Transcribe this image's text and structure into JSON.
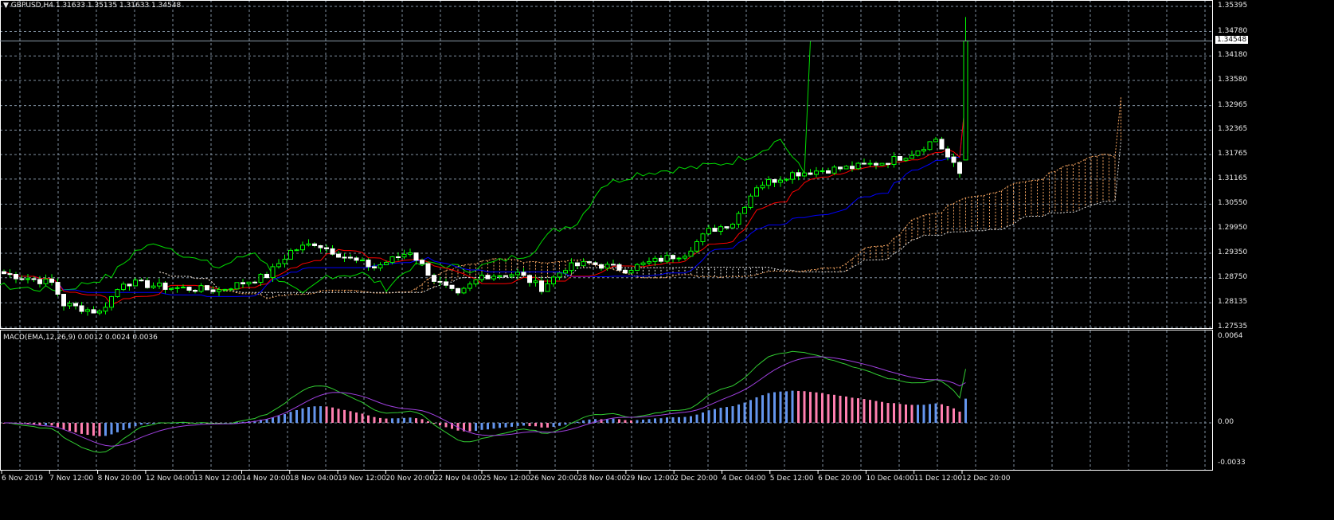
{
  "header": {
    "symbol_menu_icon": "triangle-down-icon",
    "title": "GBPUSD,H4  1.31633 1.35135 1.31633 1.34548"
  },
  "current_price": "1.34548",
  "macd_title": "MACD(EMA,12,26,9) 0.0012 0.0024 0.0036",
  "colors": {
    "background": "#000000",
    "grid": "#8090a0",
    "bull_candle": "#00ff00",
    "bear_candle": "#ffffff",
    "tenkan": "#ff0000",
    "kijun": "#0000ff",
    "chikou": "#00dd00",
    "cloud_a": "#f4a460",
    "cloud_b": "#dddddd",
    "macd_line": "#32cd32",
    "signal_line": "#a040e0",
    "hist_up": "#6495ed",
    "hist_down": "#ff7fb0"
  },
  "chart_data": {
    "type": "candlestick",
    "instrument": "GBPUSD",
    "timeframe": "H4",
    "price_axis_labels": [
      "1.35395",
      "1.34780",
      "1.34180",
      "1.33580",
      "1.32965",
      "1.32365",
      "1.31765",
      "1.31165",
      "1.30550",
      "1.29950",
      "1.29350",
      "1.28750",
      "1.28135",
      "1.27535"
    ],
    "price_range": [
      1.27535,
      1.35395
    ],
    "macd_axis_labels": [
      "0.0064",
      "0.00",
      "-0.0033"
    ],
    "macd_range": [
      -0.0033,
      0.0064
    ],
    "time_axis_labels": [
      "6 Nov 2019",
      "7 Nov 12:00",
      "8 Nov 20:00",
      "12 Nov 04:00",
      "13 Nov 12:00",
      "14 Nov 20:00",
      "18 Nov 04:00",
      "19 Nov 12:00",
      "20 Nov 20:00",
      "22 Nov 04:00",
      "25 Nov 12:00",
      "26 Nov 20:00",
      "28 Nov 04:00",
      "29 Nov 12:00",
      "2 Dec 20:00",
      "4 Dec 04:00",
      "5 Dec 12:00",
      "6 Dec 20:00",
      "10 Dec 04:00",
      "11 Dec 12:00",
      "12 Dec 20:00"
    ],
    "bar_count": 162,
    "close_keypoints": [
      [
        0,
        1.2885
      ],
      [
        8,
        1.2862
      ],
      [
        10,
        1.281
      ],
      [
        16,
        1.279
      ],
      [
        20,
        1.2865
      ],
      [
        28,
        1.285
      ],
      [
        36,
        1.2845
      ],
      [
        44,
        1.288
      ],
      [
        48,
        1.294
      ],
      [
        52,
        1.296
      ],
      [
        58,
        1.292
      ],
      [
        62,
        1.29
      ],
      [
        68,
        1.294
      ],
      [
        72,
        1.287
      ],
      [
        76,
        1.283
      ],
      [
        80,
        1.288
      ],
      [
        86,
        1.2885
      ],
      [
        90,
        1.285
      ],
      [
        94,
        1.29
      ],
      [
        98,
        1.291
      ],
      [
        104,
        1.2895
      ],
      [
        110,
        1.292
      ],
      [
        114,
        1.2935
      ],
      [
        118,
        1.299
      ],
      [
        122,
        1.301
      ],
      [
        126,
        1.31
      ],
      [
        132,
        1.313
      ],
      [
        138,
        1.314
      ],
      [
        142,
        1.3145
      ],
      [
        148,
        1.316
      ],
      [
        152,
        1.318
      ],
      [
        156,
        1.3215
      ],
      [
        158,
        1.317
      ],
      [
        160,
        1.313
      ],
      [
        161,
        1.34548
      ]
    ],
    "indicators": [
      "Ichimoku(9,26,52)",
      "MACD(12,26,9)"
    ]
  }
}
